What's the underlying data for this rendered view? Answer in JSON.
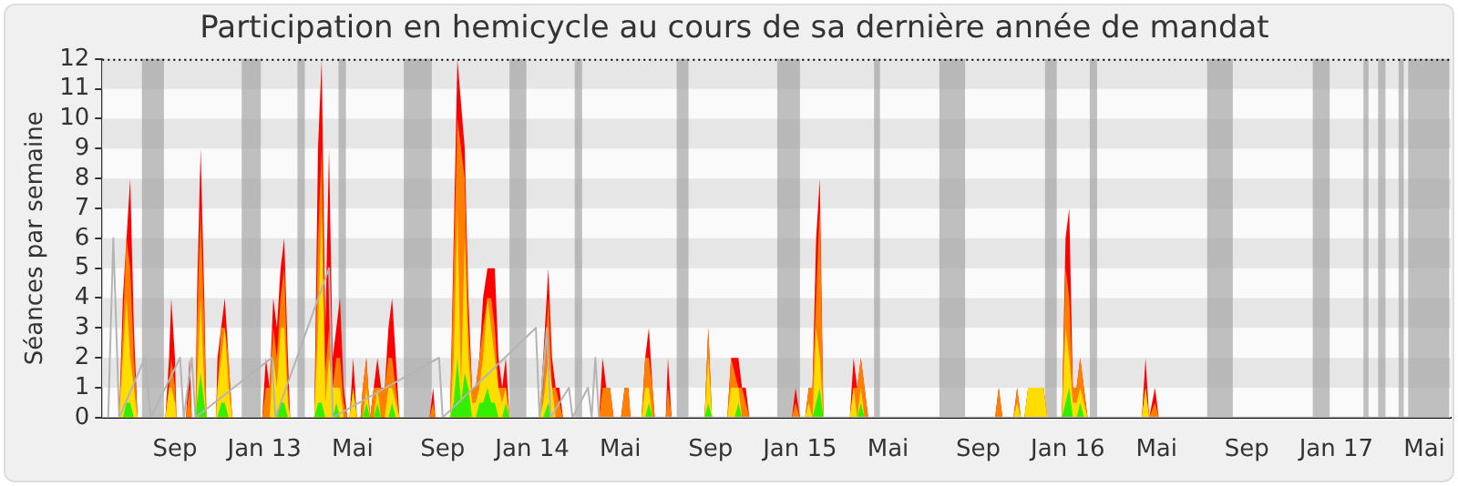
{
  "chart_data": {
    "type": "area",
    "title": "Participation en hemicycle au cours de sa dernière année de mandat",
    "ylabel": "Séances par semaine",
    "xlim": [
      "2012-05-25",
      "2017-06-06"
    ],
    "ylim": [
      0,
      12
    ],
    "yticks": [
      0,
      1,
      2,
      3,
      4,
      5,
      6,
      7,
      8,
      9,
      10,
      11,
      12
    ],
    "xticks": [
      {
        "value": "2012-09-01",
        "label": "Sep"
      },
      {
        "value": "2013-01-01",
        "label": "Jan 13"
      },
      {
        "value": "2013-05-01",
        "label": "Mai"
      },
      {
        "value": "2013-09-01",
        "label": "Sep"
      },
      {
        "value": "2014-01-01",
        "label": "Jan 14"
      },
      {
        "value": "2014-05-01",
        "label": "Mai"
      },
      {
        "value": "2014-09-01",
        "label": "Sep"
      },
      {
        "value": "2015-01-01",
        "label": "Jan 15"
      },
      {
        "value": "2015-05-01",
        "label": "Mai"
      },
      {
        "value": "2015-09-01",
        "label": "Sep"
      },
      {
        "value": "2016-01-01",
        "label": "Jan 16"
      },
      {
        "value": "2016-05-01",
        "label": "Mai"
      },
      {
        "value": "2016-09-01",
        "label": "Sep"
      },
      {
        "value": "2017-01-01",
        "label": "Jan 17"
      },
      {
        "value": "2017-05-01",
        "label": "Mai"
      }
    ],
    "legend": false,
    "marker": "none",
    "bands": [
      {
        "axis": "x",
        "from": "2012-07-18",
        "to": "2012-08-17",
        "color": "#a0a0a0"
      },
      {
        "axis": "x",
        "from": "2012-12-01",
        "to": "2012-12-27",
        "color": "#a0a0a0"
      },
      {
        "axis": "x",
        "from": "2013-02-15",
        "to": "2013-02-25",
        "color": "#a0a0a0"
      },
      {
        "axis": "x",
        "from": "2013-04-12",
        "to": "2013-04-22",
        "color": "#a0a0a0"
      },
      {
        "axis": "x",
        "from": "2013-07-10",
        "to": "2013-08-17",
        "color": "#a0a0a0"
      },
      {
        "axis": "x",
        "from": "2013-12-01",
        "to": "2013-12-24",
        "color": "#a0a0a0"
      },
      {
        "axis": "x",
        "from": "2014-02-28",
        "to": "2014-03-10",
        "color": "#a0a0a0"
      },
      {
        "axis": "x",
        "from": "2014-07-17",
        "to": "2014-08-02",
        "color": "#a0a0a0"
      },
      {
        "axis": "x",
        "from": "2014-12-01",
        "to": "2015-01-01",
        "color": "#a0a0a0"
      },
      {
        "axis": "x",
        "from": "2015-04-12",
        "to": "2015-04-20",
        "color": "#a0a0a0"
      },
      {
        "axis": "x",
        "from": "2015-07-10",
        "to": "2015-08-14",
        "color": "#a0a0a0"
      },
      {
        "axis": "x",
        "from": "2015-12-01",
        "to": "2015-12-17",
        "color": "#a0a0a0"
      },
      {
        "axis": "x",
        "from": "2016-01-31",
        "to": "2016-02-10",
        "color": "#a0a0a0"
      },
      {
        "axis": "x",
        "from": "2016-07-09",
        "to": "2016-08-13",
        "color": "#a0a0a0"
      },
      {
        "axis": "x",
        "from": "2016-11-30",
        "to": "2016-12-23",
        "color": "#a0a0a0"
      },
      {
        "axis": "x",
        "from": "2017-02-07",
        "to": "2017-02-14",
        "color": "#a0a0a0"
      },
      {
        "axis": "x",
        "from": "2017-02-27",
        "to": "2017-03-09",
        "color": "#a0a0a0"
      },
      {
        "axis": "x",
        "from": "2017-03-27",
        "to": "2017-04-03",
        "color": "#a0a0a0"
      },
      {
        "axis": "x",
        "from": "2017-04-09",
        "to": "2017-06-04",
        "color": "#a0a0a0"
      }
    ],
    "series": [
      {
        "type": "line",
        "color": "#b4b4b4",
        "x": [
          "2012-06-02",
          "2012-06-09",
          "2012-06-17",
          "2012-07-22",
          "2012-07-30",
          "2012-09-08",
          "2012-09-13",
          "2012-09-24",
          "2012-09-29",
          "2013-01-11",
          "2013-01-16",
          "2013-03-30",
          "2013-04-04",
          "2013-08-27",
          "2013-09-01",
          "2014-01-06",
          "2014-01-11",
          "2014-01-21",
          "2014-01-26",
          "2014-02-20",
          "2014-02-25",
          "2014-03-18",
          "2014-03-23",
          "2014-03-28",
          "2014-04-02",
          "2017-06-04"
        ],
        "values": [
          0,
          6,
          0,
          2,
          0,
          2,
          0,
          2,
          0,
          2,
          0,
          5,
          0,
          2,
          0,
          3,
          0,
          3,
          0,
          1,
          0,
          1,
          0,
          2,
          0,
          0
        ]
      },
      {
        "color": "#ff0000",
        "x": [
          "2012-06-06",
          "2012-06-17",
          "2012-06-22",
          "2012-06-27",
          "2012-07-02",
          "2012-07-07",
          "2012-07-12",
          "2012-08-19",
          "2012-08-24",
          "2012-08-27",
          "2012-09-01",
          "2012-09-03",
          "2012-09-16",
          "2012-09-21",
          "2012-09-24",
          "2012-09-29",
          "2012-10-01",
          "2012-10-06",
          "2012-10-11",
          "2012-10-14",
          "2012-10-27",
          "2012-10-29",
          "2012-11-03",
          "2012-11-08",
          "2012-11-13",
          "2012-11-18",
          "2012-12-29",
          "2013-01-03",
          "2013-01-08",
          "2013-01-13",
          "2013-01-18",
          "2013-01-23",
          "2013-01-28",
          "2013-02-02",
          "2013-02-05",
          "2013-03-10",
          "2013-03-15",
          "2013-03-20",
          "2013-03-25",
          "2013-03-30",
          "2013-04-04",
          "2013-04-09",
          "2013-04-14",
          "2013-04-19",
          "2013-04-24",
          "2013-04-27",
          "2013-05-02",
          "2013-05-07",
          "2013-05-12",
          "2013-05-15",
          "2013-05-20",
          "2013-05-25",
          "2013-05-30",
          "2013-06-04",
          "2013-06-09",
          "2013-06-14",
          "2013-06-19",
          "2013-06-24",
          "2013-06-29",
          "2013-07-04",
          "2013-08-14",
          "2013-08-19",
          "2013-08-22",
          "2013-09-11",
          "2013-09-16",
          "2013-09-21",
          "2013-09-26",
          "2013-10-01",
          "2013-10-06",
          "2013-10-11",
          "2013-10-16",
          "2013-10-21",
          "2013-10-26",
          "2013-11-01",
          "2013-11-06",
          "2013-11-11",
          "2013-11-16",
          "2013-11-21",
          "2013-11-26",
          "2013-12-01",
          "2014-01-11",
          "2014-01-16",
          "2014-01-23",
          "2014-01-28",
          "2014-02-02",
          "2014-02-07",
          "2014-02-12",
          "2014-04-02",
          "2014-04-07",
          "2014-04-12",
          "2014-04-17",
          "2014-04-22",
          "2014-05-02",
          "2014-05-07",
          "2014-05-12",
          "2014-05-15",
          "2014-05-30",
          "2014-06-04",
          "2014-06-09",
          "2014-06-14",
          "2014-06-17",
          "2014-07-02",
          "2014-07-05",
          "2014-07-10",
          "2014-08-24",
          "2014-08-29",
          "2014-09-03",
          "2014-09-24",
          "2014-09-29",
          "2014-10-09",
          "2014-10-14",
          "2014-10-19",
          "2014-10-24",
          "2014-12-21",
          "2014-12-26",
          "2015-01-01",
          "2015-01-08",
          "2015-01-13",
          "2015-01-18",
          "2015-01-23",
          "2015-01-28",
          "2015-02-02",
          "2015-03-10",
          "2015-03-15",
          "2015-03-20",
          "2015-03-25",
          "2015-03-30",
          "2015-04-04",
          "2015-09-24",
          "2015-09-29",
          "2015-10-04",
          "2015-10-19",
          "2015-10-24",
          "2015-10-29",
          "2015-11-03",
          "2015-11-08",
          "2015-11-29",
          "2015-12-04",
          "2015-12-24",
          "2015-12-29",
          "2016-01-03",
          "2016-01-08",
          "2016-01-13",
          "2016-01-18",
          "2016-01-23",
          "2016-01-28",
          "2016-04-11",
          "2016-04-16",
          "2016-04-21",
          "2016-04-29",
          "2016-05-04",
          "2017-06-04"
        ],
        "values": [
          0,
          0,
          4,
          6,
          8,
          3,
          0,
          0,
          2,
          4,
          2,
          0,
          0,
          2,
          0,
          0,
          4,
          9,
          4,
          0,
          0,
          2,
          3,
          4,
          2,
          0,
          0,
          2,
          1,
          4,
          3,
          5,
          6,
          2,
          0,
          0,
          9,
          12,
          3,
          9,
          2,
          3,
          4,
          1,
          0,
          0,
          2,
          0,
          0,
          1,
          2,
          0,
          1,
          2,
          1,
          1,
          3,
          4,
          2,
          0,
          0,
          1,
          0,
          0,
          6,
          12,
          null,
          9,
          4,
          1,
          1,
          2,
          4,
          5,
          5,
          5,
          2,
          1,
          2,
          0,
          0,
          2,
          5,
          2,
          1,
          1,
          0,
          0,
          2,
          1,
          1,
          0,
          0,
          1,
          1,
          0,
          0,
          2,
          3,
          1,
          0,
          0,
          2,
          0,
          0,
          3,
          0,
          0,
          2,
          2,
          1,
          1,
          0,
          0,
          1,
          0,
          0,
          1,
          1,
          6,
          8,
          0,
          0,
          2,
          1,
          2,
          1,
          0,
          0,
          1,
          0,
          0,
          1,
          0,
          0,
          1,
          1,
          0,
          0,
          6,
          7,
          1,
          1,
          2,
          1,
          0,
          0,
          2,
          0,
          1,
          0,
          0
        ]
      },
      {
        "color": "#ff8000",
        "x": [
          "2012-06-06",
          "2012-06-17",
          "2012-06-22",
          "2012-06-27",
          "2012-07-02",
          "2012-07-07",
          "2012-07-12",
          "2012-08-19",
          "2012-08-24",
          "2012-08-27",
          "2012-09-01",
          "2012-09-03",
          "2012-09-16",
          "2012-09-21",
          "2012-09-24",
          "2012-09-29",
          "2012-10-01",
          "2012-10-06",
          "2012-10-11",
          "2012-10-14",
          "2012-10-27",
          "2012-10-29",
          "2012-11-03",
          "2012-11-08",
          "2012-11-13",
          "2012-11-18",
          "2012-12-29",
          "2013-01-03",
          "2013-01-08",
          "2013-01-13",
          "2013-01-18",
          "2013-01-23",
          "2013-01-28",
          "2013-02-02",
          "2013-02-05",
          "2013-03-10",
          "2013-03-15",
          "2013-03-20",
          "2013-03-25",
          "2013-03-30",
          "2013-04-04",
          "2013-04-09",
          "2013-04-14",
          "2013-04-19",
          "2013-04-24",
          "2013-04-27",
          "2013-05-02",
          "2013-05-07",
          "2013-05-12",
          "2013-05-15",
          "2013-05-20",
          "2013-05-25",
          "2013-05-30",
          "2013-06-04",
          "2013-06-09",
          "2013-06-14",
          "2013-06-19",
          "2013-06-24",
          "2013-06-29",
          "2013-07-04",
          "2013-08-14",
          "2013-08-19",
          "2013-08-22",
          "2013-09-11",
          "2013-09-16",
          "2013-09-21",
          "2013-09-26",
          "2013-10-01",
          "2013-10-06",
          "2013-10-11",
          "2013-10-16",
          "2013-10-21",
          "2013-10-26",
          "2013-11-01",
          "2013-11-06",
          "2013-11-11",
          "2013-11-16",
          "2013-11-21",
          "2013-11-26",
          "2013-12-01",
          "2014-01-11",
          "2014-01-16",
          "2014-01-23",
          "2014-01-28",
          "2014-02-02",
          "2014-02-07",
          "2014-02-12",
          "2014-04-02",
          "2014-04-07",
          "2014-04-12",
          "2014-04-17",
          "2014-04-22",
          "2014-05-02",
          "2014-05-07",
          "2014-05-12",
          "2014-05-15",
          "2014-05-30",
          "2014-06-04",
          "2014-06-09",
          "2014-06-14",
          "2014-06-17",
          "2014-07-02",
          "2014-07-05",
          "2014-07-10",
          "2014-08-24",
          "2014-08-29",
          "2014-09-03",
          "2014-09-24",
          "2014-09-29",
          "2014-10-09",
          "2014-10-14",
          "2014-10-19",
          "2014-10-24",
          "2014-12-21",
          "2014-12-26",
          "2015-01-01",
          "2015-01-08",
          "2015-01-13",
          "2015-01-18",
          "2015-01-23",
          "2015-01-28",
          "2015-02-02",
          "2015-03-10",
          "2015-03-15",
          "2015-03-20",
          "2015-03-25",
          "2015-03-30",
          "2015-04-04",
          "2015-09-24",
          "2015-09-29",
          "2015-10-04",
          "2015-10-19",
          "2015-10-24",
          "2015-10-29",
          "2015-11-03",
          "2015-11-08",
          "2015-11-29",
          "2015-12-04",
          "2015-12-24",
          "2015-12-29",
          "2016-01-03",
          "2016-01-08",
          "2016-01-13",
          "2016-01-18",
          "2016-01-23",
          "2016-01-28",
          "2016-04-11",
          "2016-04-16",
          "2016-04-21",
          "2016-04-29",
          "2016-05-04",
          "2017-06-04"
        ],
        "values": [
          0,
          0,
          3,
          6,
          5,
          2,
          0,
          0,
          1,
          2,
          1,
          0,
          0,
          1,
          0,
          0,
          3,
          7,
          3,
          0,
          0,
          1,
          3,
          3,
          2,
          0,
          0,
          1,
          1,
          3,
          2,
          4,
          5,
          1,
          0,
          0,
          6,
          9,
          1.5,
          3,
          1,
          2,
          2,
          0.5,
          0,
          0,
          1,
          0,
          0,
          1,
          2,
          0,
          1,
          1,
          1,
          1,
          2,
          2,
          1,
          0,
          0,
          0.5,
          0,
          0,
          5,
          10,
          null,
          8,
          3,
          1,
          1,
          2,
          3,
          4,
          4,
          3,
          1,
          1,
          1,
          0,
          0,
          1,
          4,
          1,
          1,
          0.5,
          0,
          0,
          1,
          1,
          1,
          0,
          0,
          1,
          1,
          0,
          0,
          2,
          2,
          1,
          0,
          0,
          1,
          0,
          0,
          3,
          0,
          0,
          2,
          1,
          1,
          0.5,
          0,
          0,
          0.5,
          0,
          0,
          1,
          1,
          4,
          7,
          0,
          0,
          1,
          1,
          2,
          1,
          0,
          0,
          1,
          0,
          0,
          1,
          0,
          0,
          1,
          1,
          0,
          0,
          5,
          4,
          1,
          1,
          2,
          1,
          0,
          0,
          1,
          0,
          0.5,
          0,
          0
        ]
      },
      {
        "color": "#ffdd00",
        "x": [
          "2012-06-06",
          "2012-06-17",
          "2012-06-22",
          "2012-06-27",
          "2012-07-02",
          "2012-07-07",
          "2012-07-12",
          "2012-08-19",
          "2012-08-24",
          "2012-08-27",
          "2012-09-01",
          "2012-09-03",
          "2012-09-29",
          "2012-10-01",
          "2012-10-06",
          "2012-10-11",
          "2012-10-14",
          "2012-10-27",
          "2012-10-29",
          "2012-11-03",
          "2012-11-08",
          "2012-11-13",
          "2012-11-18",
          "2013-01-08",
          "2013-01-13",
          "2013-01-18",
          "2013-01-23",
          "2013-01-28",
          "2013-02-02",
          "2013-02-05",
          "2013-03-10",
          "2013-03-15",
          "2013-03-20",
          "2013-03-25",
          "2013-03-30",
          "2013-04-04",
          "2013-04-09",
          "2013-04-14",
          "2013-04-19",
          "2013-04-27",
          "2013-05-02",
          "2013-05-07",
          "2013-05-15",
          "2013-05-20",
          "2013-05-25",
          "2013-05-30",
          "2013-06-04",
          "2013-06-09",
          "2013-06-14",
          "2013-06-19",
          "2013-06-24",
          "2013-06-29",
          "2013-07-04",
          "2013-09-11",
          "2013-09-16",
          "2013-09-21",
          "2013-09-26",
          "2013-10-01",
          "2013-10-06",
          "2013-10-11",
          "2013-10-16",
          "2013-10-21",
          "2013-10-26",
          "2013-11-01",
          "2013-11-06",
          "2013-11-11",
          "2013-11-16",
          "2013-11-21",
          "2013-11-26",
          "2013-12-01",
          "2014-01-11",
          "2014-01-16",
          "2014-01-23",
          "2014-01-28",
          "2014-02-02",
          "2014-05-30",
          "2014-06-04",
          "2014-06-09",
          "2014-06-14",
          "2014-08-24",
          "2014-08-29",
          "2014-09-03",
          "2014-09-24",
          "2014-09-29",
          "2014-10-09",
          "2014-10-14",
          "2015-01-08",
          "2015-01-13",
          "2015-01-18",
          "2015-01-23",
          "2015-01-28",
          "2015-02-02",
          "2015-03-10",
          "2015-03-15",
          "2015-03-20",
          "2015-03-25",
          "2015-03-30",
          "2015-10-19",
          "2015-10-24",
          "2015-10-29",
          "2015-11-03",
          "2015-11-08",
          "2015-11-29",
          "2015-12-04",
          "2015-12-24",
          "2015-12-29",
          "2016-01-03",
          "2016-01-08",
          "2016-01-13",
          "2016-01-18",
          "2016-01-23",
          "2016-01-28",
          "2016-04-11",
          "2016-04-16",
          "2016-04-21",
          "2017-06-04"
        ],
        "values": [
          0,
          0,
          2,
          4,
          2,
          1,
          0,
          0,
          1,
          1,
          0.5,
          0,
          0,
          1,
          4,
          1,
          0,
          0,
          1,
          2,
          3,
          1,
          0,
          0,
          2,
          1,
          3,
          3,
          0.5,
          0,
          0,
          3,
          7,
          0.5,
          2,
          1,
          1,
          1,
          0,
          0,
          1,
          0,
          0,
          1,
          0,
          0,
          1,
          0,
          0,
          1,
          1,
          0.5,
          0,
          0,
          2,
          7,
          1,
          6,
          2,
          0.5,
          0.5,
          1,
          2,
          4,
          3,
          2,
          1,
          0.5,
          1,
          0,
          0,
          0.5,
          2,
          1,
          0,
          0,
          1,
          1,
          0,
          0,
          2,
          0,
          0,
          1,
          1,
          0,
          0,
          0.5,
          0,
          3,
          2,
          0,
          0,
          1,
          0,
          1,
          0,
          0,
          0.5,
          0,
          0,
          1,
          1,
          0,
          0,
          3,
          2,
          0.5,
          0.5,
          1,
          0.5,
          0,
          0,
          1,
          0,
          0
        ]
      },
      {
        "color": "#33ee00",
        "x": [
          "2012-06-06",
          "2012-06-22",
          "2012-06-27",
          "2012-07-02",
          "2012-07-07",
          "2012-09-29",
          "2012-10-01",
          "2012-10-06",
          "2012-10-11",
          "2012-10-14",
          "2012-10-29",
          "2012-11-03",
          "2012-11-08",
          "2012-11-13",
          "2013-01-18",
          "2013-01-23",
          "2013-01-28",
          "2013-02-02",
          "2013-03-10",
          "2013-03-15",
          "2013-03-20",
          "2013-03-25",
          "2013-04-04",
          "2013-04-09",
          "2013-04-14",
          "2013-05-15",
          "2013-05-20",
          "2013-05-25",
          "2013-05-30",
          "2013-06-04",
          "2013-06-09",
          "2013-06-19",
          "2013-06-24",
          "2013-06-29",
          "2013-09-11",
          "2013-09-16",
          "2013-09-21",
          "2013-09-26",
          "2013-10-01",
          "2013-10-06",
          "2013-10-11",
          "2013-10-16",
          "2013-10-21",
          "2013-10-26",
          "2013-11-01",
          "2013-11-06",
          "2013-11-11",
          "2013-11-16",
          "2013-11-21",
          "2013-11-26",
          "2013-12-01",
          "2014-01-16",
          "2014-01-23",
          "2014-01-28",
          "2014-06-04",
          "2014-06-09",
          "2014-06-14",
          "2014-08-24",
          "2014-08-29",
          "2014-09-03",
          "2014-10-04",
          "2014-10-09",
          "2014-10-14",
          "2015-01-18",
          "2015-01-23",
          "2015-01-28",
          "2015-02-02",
          "2015-03-20",
          "2015-03-25",
          "2015-03-30",
          "2015-12-24",
          "2015-12-29",
          "2016-01-03",
          "2016-01-08",
          "2016-01-13",
          "2016-01-18",
          "2016-01-23",
          "2017-06-04"
        ],
        "values": [
          0,
          0,
          0.5,
          0.5,
          0,
          0,
          0.5,
          1.5,
          0.5,
          0,
          0,
          0.5,
          0.5,
          0,
          0,
          0.5,
          0.5,
          0,
          0,
          0.5,
          0.5,
          0,
          0,
          0.5,
          0,
          0,
          0.5,
          0,
          0,
          0.5,
          0,
          0,
          0.5,
          0,
          0,
          0.5,
          2,
          0.5,
          1.5,
          1,
          0,
          0,
          0.5,
          0.5,
          1,
          0.5,
          0.5,
          0,
          0,
          0.5,
          0,
          0,
          0.5,
          0,
          0,
          0.5,
          0,
          0,
          0.5,
          0,
          0,
          0.5,
          0,
          0,
          0.5,
          1,
          0,
          0,
          0.5,
          0,
          0,
          0.5,
          1,
          0,
          0,
          0.5,
          0,
          0
        ]
      }
    ]
  }
}
